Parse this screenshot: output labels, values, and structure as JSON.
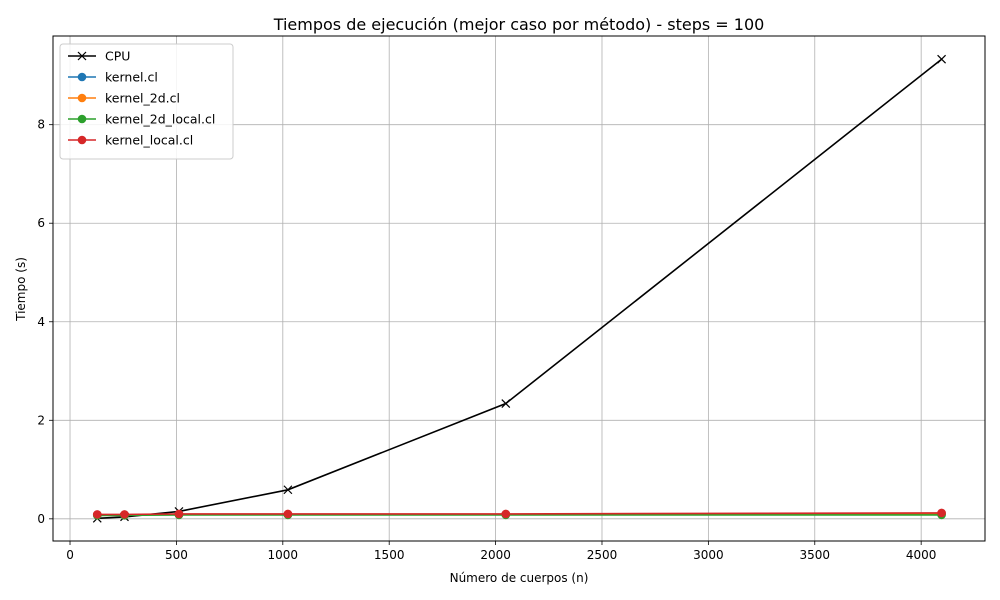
{
  "chart_data": {
    "type": "line",
    "title": "Tiempos de ejecución (mejor caso por método) - steps = 100",
    "xlabel": "Número de cuerpos (n)",
    "ylabel": "Tiempo (s)",
    "xlim": [
      -80,
      4300
    ],
    "ylim": [
      -0.45,
      9.8
    ],
    "xticks": [
      0,
      500,
      1000,
      1500,
      2000,
      2500,
      3000,
      3500,
      4000
    ],
    "yticks": [
      0,
      2,
      4,
      6,
      8
    ],
    "grid": true,
    "legend_position": "upper left",
    "x": [
      128,
      256,
      512,
      1024,
      2048,
      4096
    ],
    "series": [
      {
        "name": "CPU",
        "color": "#000000",
        "marker": "x",
        "values": [
          0.01,
          0.04,
          0.15,
          0.59,
          2.34,
          9.33
        ]
      },
      {
        "name": "kernel.cl",
        "color": "#1f77b4",
        "marker": "o",
        "values": [
          0.08,
          0.08,
          0.09,
          0.09,
          0.09,
          0.1
        ]
      },
      {
        "name": "kernel_2d.cl",
        "color": "#ff7f0e",
        "marker": "o",
        "values": [
          0.08,
          0.08,
          0.09,
          0.09,
          0.09,
          0.1
        ]
      },
      {
        "name": "kernel_2d_local.cl",
        "color": "#2ca02c",
        "marker": "o",
        "values": [
          0.07,
          0.07,
          0.08,
          0.08,
          0.08,
          0.08
        ]
      },
      {
        "name": "kernel_local.cl",
        "color": "#d62728",
        "marker": "o",
        "values": [
          0.09,
          0.09,
          0.1,
          0.1,
          0.1,
          0.12
        ]
      }
    ]
  }
}
